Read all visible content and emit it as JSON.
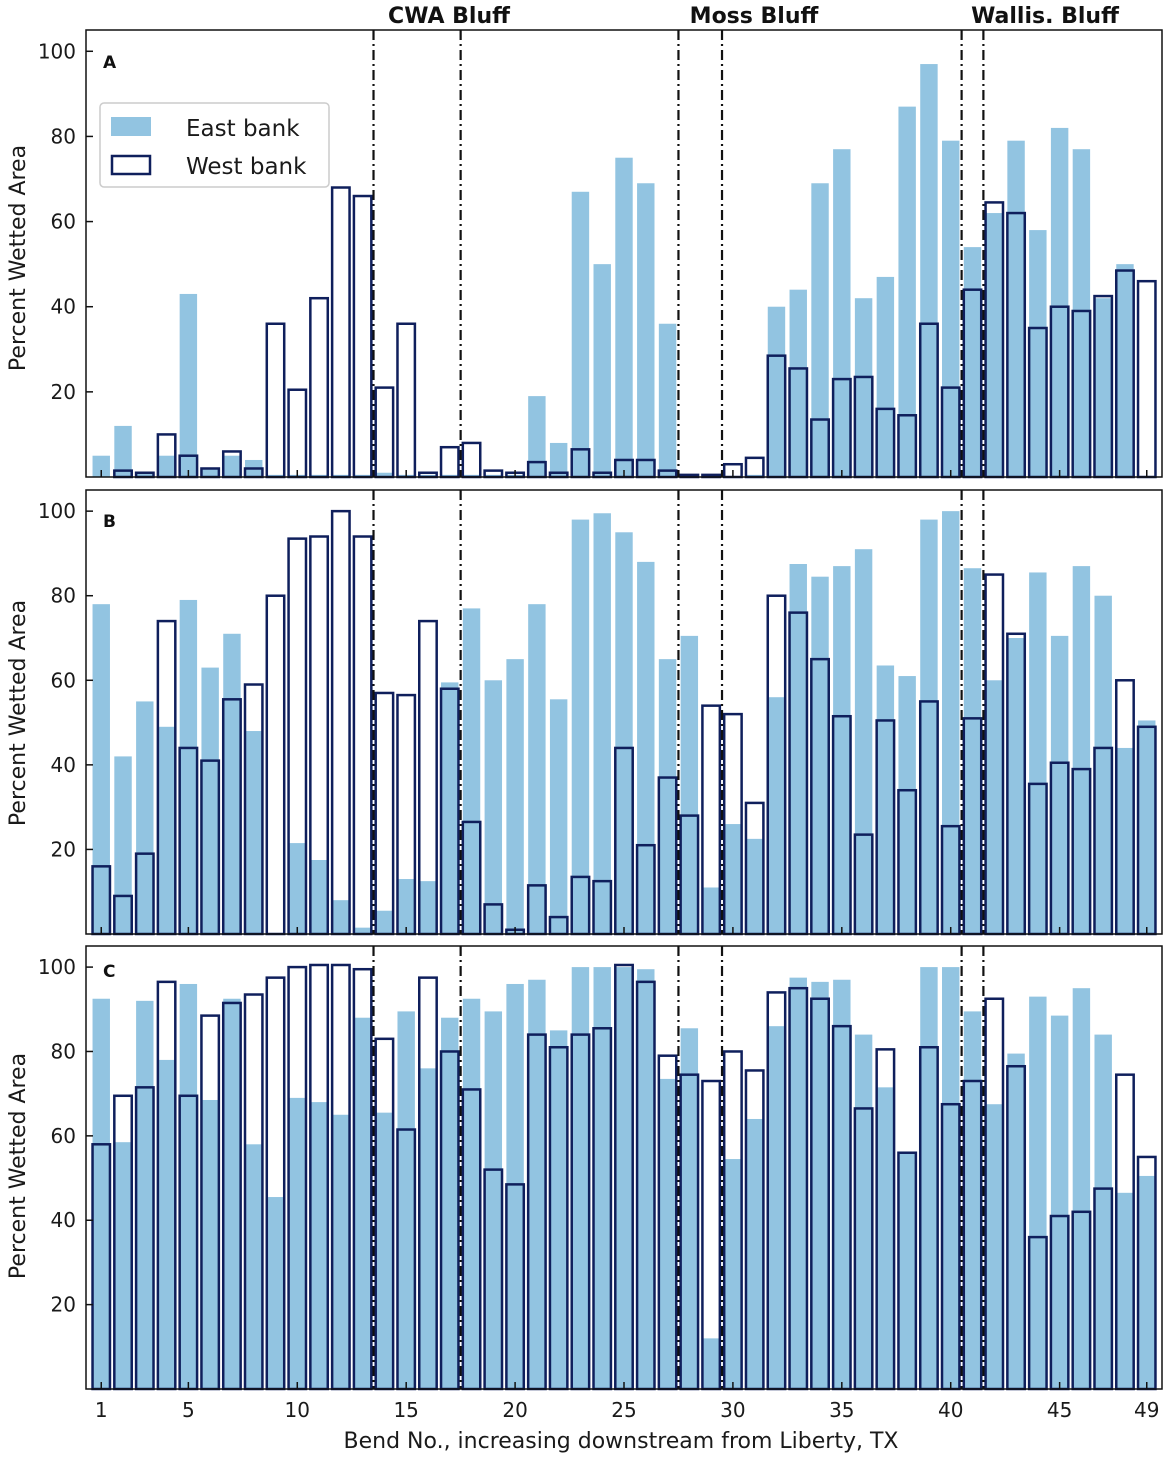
{
  "chart_data": {
    "type": "bar",
    "xlabel": "Bend No., increasing downstream from Liberty, TX",
    "ylabel": "Percent Wetted Area",
    "xticks": [
      1,
      5,
      10,
      15,
      20,
      25,
      30,
      35,
      40,
      45,
      49
    ],
    "yticks": [
      20,
      40,
      60,
      80,
      100
    ],
    "ylim": [
      0,
      105
    ],
    "xlim": [
      0.3,
      49.7
    ],
    "colors": {
      "east_fill": "#92c4e1",
      "west_edge": "#0f1f5c",
      "divider": "#111111"
    },
    "legend": {
      "position": "top-left of panel A",
      "entries": [
        "East bank",
        "West bank"
      ]
    },
    "regions": [
      {
        "label": "CWA Bluff",
        "bounds": [
          13.5,
          17.5
        ]
      },
      {
        "label": "Moss Bluff",
        "bounds": [
          27.5,
          29.5
        ]
      },
      {
        "label": "Wallis. Bluff",
        "bounds": [
          40.5,
          41.5
        ]
      }
    ],
    "panels": [
      {
        "label": "A",
        "east": [
          5,
          12,
          1,
          5,
          43,
          2,
          5,
          4,
          0.5,
          0.5,
          0.5,
          0.5,
          0.5,
          1,
          0.5,
          0.5,
          0.5,
          0.5,
          0.5,
          0.5,
          19,
          8,
          67,
          50,
          75,
          69,
          36,
          0,
          0,
          0,
          0.5,
          40,
          44,
          69,
          77,
          42,
          47,
          87,
          97,
          79,
          54,
          62,
          79,
          58,
          82,
          77,
          42,
          50,
          0
        ],
        "west": [
          0,
          1.5,
          1,
          10,
          5,
          2,
          6,
          2,
          36,
          20.5,
          42,
          68,
          66,
          21,
          36,
          1,
          7,
          8,
          1.5,
          1,
          3.5,
          1,
          6.5,
          1,
          4,
          4,
          1.5,
          0.5,
          0.5,
          3,
          4.5,
          28.5,
          25.5,
          13.5,
          23,
          23.5,
          16,
          14.5,
          36,
          21,
          44,
          64.5,
          62,
          35,
          40,
          39,
          42.5,
          48.5,
          46
        ]
      },
      {
        "label": "B",
        "east": [
          78,
          42,
          55,
          49,
          79,
          63,
          71,
          48,
          0,
          21.5,
          17.5,
          8,
          1.5,
          5.5,
          13,
          12.5,
          59.5,
          77,
          60,
          65,
          78,
          55.5,
          98,
          99.5,
          95,
          88,
          65,
          70.5,
          11,
          26,
          22.5,
          56,
          87.5,
          84.5,
          87,
          91,
          63.5,
          61,
          98,
          100,
          86.5,
          60,
          70,
          85.5,
          70.5,
          87,
          80,
          44,
          50.5
        ],
        "west": [
          16,
          9,
          19,
          74,
          44,
          41,
          55.5,
          59,
          80,
          93.5,
          94,
          100,
          94,
          57,
          56.5,
          74,
          58,
          26.5,
          7,
          1,
          11.5,
          4,
          13.5,
          12.5,
          44,
          21,
          37,
          28,
          54,
          52,
          31,
          80,
          76,
          65,
          51.5,
          23.5,
          50.5,
          34,
          55,
          25.5,
          51,
          85,
          71,
          35.5,
          40.5,
          39,
          44,
          60,
          49
        ]
      },
      {
        "label": "C",
        "east": [
          92.5,
          58.5,
          92,
          78,
          96,
          68.5,
          92.5,
          58,
          45.5,
          69,
          68,
          65,
          88,
          65.5,
          89.5,
          76,
          88,
          92.5,
          89.5,
          96,
          97,
          85,
          100,
          100,
          100,
          99.5,
          73.5,
          85.5,
          12,
          54.5,
          64,
          86,
          97.5,
          96.5,
          97,
          84,
          71.5,
          56,
          100,
          100,
          89.5,
          67.5,
          79.5,
          93,
          88.5,
          95,
          84,
          46.5,
          50.5
        ],
        "west": [
          58,
          69.5,
          71.5,
          96.5,
          69.5,
          88.5,
          91.5,
          93.5,
          97.5,
          100,
          100.5,
          100.5,
          99.5,
          83,
          61.5,
          97.5,
          80,
          71,
          52,
          48.5,
          84,
          81,
          84,
          85.5,
          100.5,
          96.5,
          79,
          74.5,
          73,
          80,
          75.5,
          94,
          95,
          92.5,
          86,
          66.5,
          80.5,
          56,
          81,
          67.5,
          73,
          92.5,
          76.5,
          36,
          41,
          42,
          47.5,
          74.5,
          55
        ]
      }
    ]
  }
}
